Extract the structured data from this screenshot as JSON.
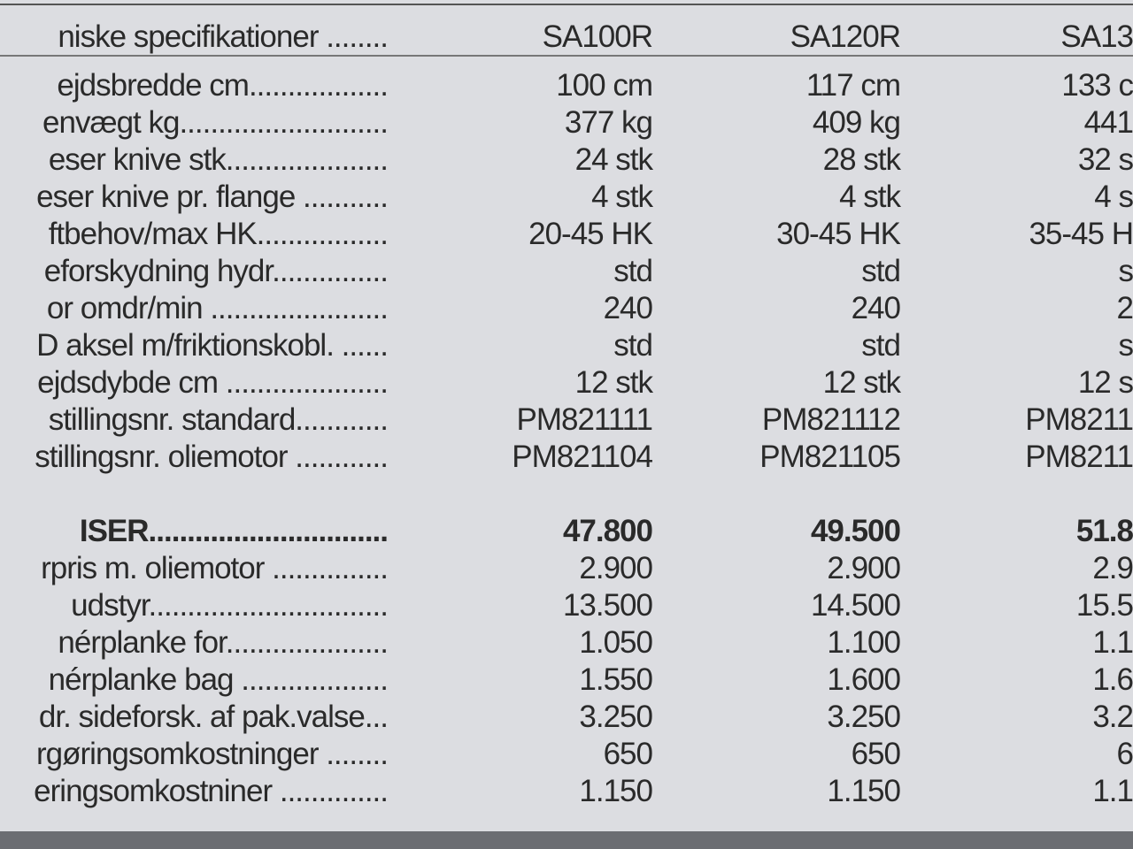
{
  "table": {
    "header": [
      "niske specifikationer ........",
      "SA100R",
      "SA120R",
      "SA13"
    ],
    "spec_rows": [
      [
        "ejdsbredde cm..................",
        "100 cm",
        "117 cm",
        "133 c"
      ],
      [
        "envægt kg...........................",
        "377 kg",
        "409 kg",
        "441"
      ],
      [
        "eser knive stk.....................",
        "24 stk",
        "28 stk",
        "32 s"
      ],
      [
        "eser knive pr. flange ...........",
        "4 stk",
        "4 stk",
        "4 s"
      ],
      [
        "ftbehov/max HK.................",
        "20-45 HK",
        "30-45 HK",
        "35-45 H"
      ],
      [
        "eforskydning hydr...............",
        "std",
        "std",
        "s"
      ],
      [
        "or omdr/min .......................",
        "240",
        "240",
        "2"
      ],
      [
        "D aksel m/friktionskobl. ......",
        "std",
        "std",
        "s"
      ],
      [
        "ejdsdybde cm .....................",
        "12 stk",
        "12 stk",
        "12 s"
      ],
      [
        "stillingsnr. standard............",
        "PM821111",
        "PM821112",
        "PM8211"
      ],
      [
        "stillingsnr. oliemotor ............",
        "PM821104",
        "PM821105",
        "PM8211"
      ]
    ],
    "price_rows": [
      [
        "ISER...............................",
        "47.800",
        "49.500",
        "51.8"
      ],
      [
        "rpris m. oliemotor ...............",
        "2.900",
        "2.900",
        "2.9"
      ],
      [
        "udstyr...............................",
        "13.500",
        "14.500",
        "15.5"
      ],
      [
        "nérplanke for.....................",
        "1.050",
        "1.100",
        "1.1"
      ],
      [
        "nérplanke bag ...................",
        "1.550",
        "1.600",
        "1.6"
      ],
      [
        "dr. sideforsk. af pak.valse...",
        "3.250",
        "3.250",
        "3.2"
      ],
      [
        "rgøringsomkostninger ........",
        "650",
        "650",
        "6"
      ],
      [
        "eringsomkostniner ..............",
        "1.150",
        "1.150",
        "1.1"
      ]
    ]
  }
}
